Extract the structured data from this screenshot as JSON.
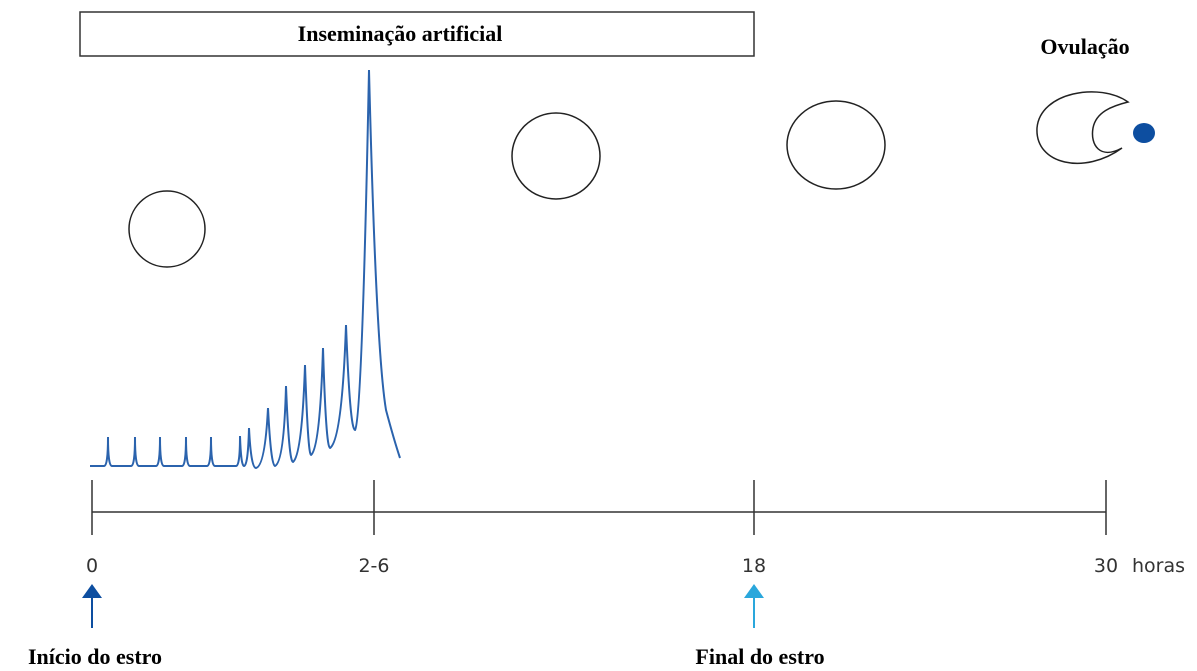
{
  "banner": "Inseminação artificial",
  "event": "Ovulação",
  "timeline": {
    "ticks": [
      "0",
      "2-6",
      "18",
      "30"
    ],
    "unit": "horas"
  },
  "markers": {
    "start": "Início do estro",
    "end": "Final do estro"
  }
}
